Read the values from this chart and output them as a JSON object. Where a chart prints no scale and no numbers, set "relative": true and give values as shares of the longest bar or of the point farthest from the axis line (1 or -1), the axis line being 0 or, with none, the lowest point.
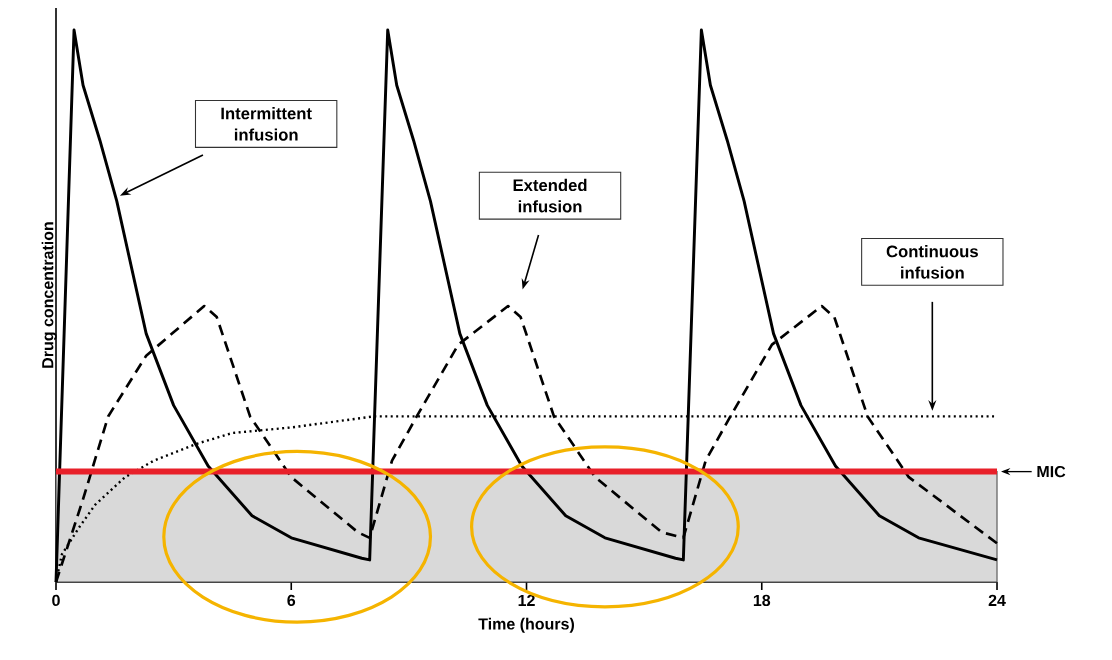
{
  "chart_data": {
    "type": "line",
    "relative": true,
    "xlabel": "Time (hours)",
    "ylabel": "Drug concentration",
    "xlim": [
      0,
      24
    ],
    "xticks": [
      0,
      6,
      12,
      18,
      24
    ],
    "marker": "none",
    "series": [
      {
        "color": "#000000",
        "line_style": "solid",
        "x": [
          0,
          0.46,
          0.69,
          1.12,
          1.55,
          2.3,
          3.0,
          3.88,
          5.0,
          6.0,
          7.8,
          8.0,
          8.46,
          8.69,
          9.12,
          9.55,
          10.3,
          11.0,
          11.88,
          13.0,
          14.0,
          15.8,
          16.0,
          16.46,
          16.69,
          17.12,
          17.55,
          18.3,
          19.0,
          19.88,
          21.0,
          22.0,
          24.0
        ],
        "values": [
          0,
          1,
          0.9,
          0.8,
          0.69,
          0.45,
          0.32,
          0.21,
          0.12,
          0.08,
          0.043,
          0.04,
          1,
          0.9,
          0.8,
          0.69,
          0.45,
          0.32,
          0.21,
          0.12,
          0.08,
          0.043,
          0.04,
          1,
          0.9,
          0.8,
          0.69,
          0.45,
          0.32,
          0.21,
          0.12,
          0.08,
          0.04
        ]
      },
      {
        "color": "#000000",
        "line_style": "dashed",
        "x": [
          0,
          0.69,
          1.33,
          2.3,
          3.78,
          4.1,
          4.95,
          6.0,
          7.7,
          8.0,
          8.57,
          9.2,
          10.26,
          11.53,
          11.85,
          12.7,
          13.75,
          15.45,
          16.0,
          16.57,
          17.2,
          18.26,
          19.53,
          19.85,
          20.7,
          21.75,
          24.0
        ],
        "values": [
          0,
          0.15,
          0.3,
          0.41,
          0.5,
          0.48,
          0.3,
          0.19,
          0.09,
          0.08,
          0.22,
          0.3,
          0.43,
          0.5,
          0.48,
          0.3,
          0.19,
          0.09,
          0.08,
          0.22,
          0.3,
          0.43,
          0.5,
          0.48,
          0.3,
          0.19,
          0.07
        ]
      },
      {
        "color": "#000000",
        "line_style": "dotted",
        "x": [
          0,
          0.15,
          0.6,
          1.0,
          1.76,
          2.5,
          3.57,
          4.5,
          6.0,
          8.1,
          10,
          24
        ],
        "values": [
          0,
          0.05,
          0.1,
          0.14,
          0.19,
          0.22,
          0.25,
          0.27,
          0.28,
          0.3,
          0.3,
          0.3
        ]
      }
    ],
    "ref_lines": [
      {
        "axis": "y",
        "value": 0.2,
        "label": "MIC",
        "color": "#e8202a"
      }
    ],
    "bands": [
      {
        "axis": "y",
        "from": 0,
        "to": 0.2,
        "color": "#d9d9d9"
      }
    ],
    "annotations": [
      "Intermittent infusion",
      "Extended infusion",
      "Continuous infusion"
    ]
  }
}
